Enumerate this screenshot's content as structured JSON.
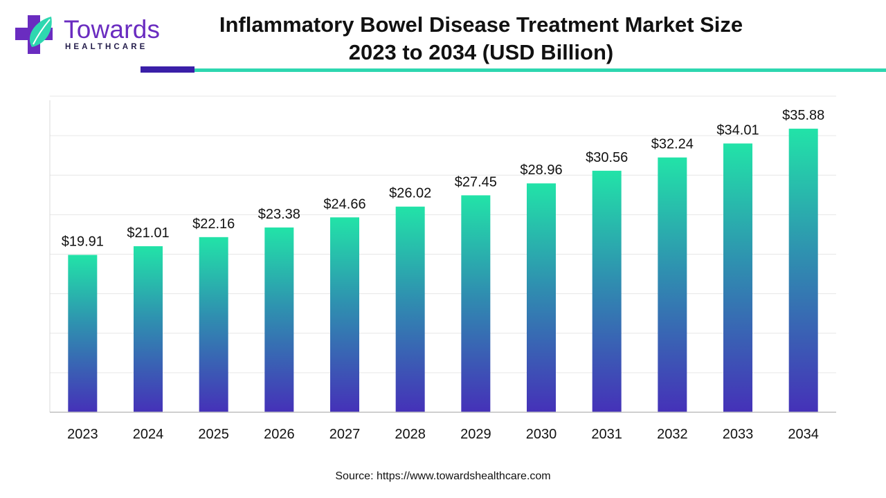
{
  "brand": {
    "name": "Towards",
    "sub": "HEALTHCARE",
    "colors": {
      "purple": "#6a2cc0",
      "teal": "#2ed7b0",
      "dark": "#3a1fa8"
    }
  },
  "title": {
    "line1": "Inflammatory Bowel Disease Treatment Market Size",
    "line2": "2023 to 2034 (USD Billion)"
  },
  "source": "Source: https://www.towardshealthcare.com",
  "chart_data": {
    "type": "bar",
    "categories": [
      "2023",
      "2024",
      "2025",
      "2026",
      "2027",
      "2028",
      "2029",
      "2030",
      "2031",
      "2032",
      "2033",
      "2034"
    ],
    "values": [
      19.91,
      21.01,
      22.16,
      23.38,
      24.66,
      26.02,
      27.45,
      28.96,
      30.56,
      32.24,
      34.01,
      35.88
    ],
    "labels": [
      "$19.91",
      "$21.01",
      "$22.16",
      "$23.38",
      "$24.66",
      "$26.02",
      "$27.45",
      "$28.96",
      "$30.56",
      "$32.24",
      "$34.01",
      "$35.88"
    ],
    "ylim": [
      0,
      40
    ],
    "grid": true,
    "bar_gradient": {
      "top": "#22e3a8",
      "middle": "#2f8fb0",
      "bottom": "#4531b8"
    }
  }
}
